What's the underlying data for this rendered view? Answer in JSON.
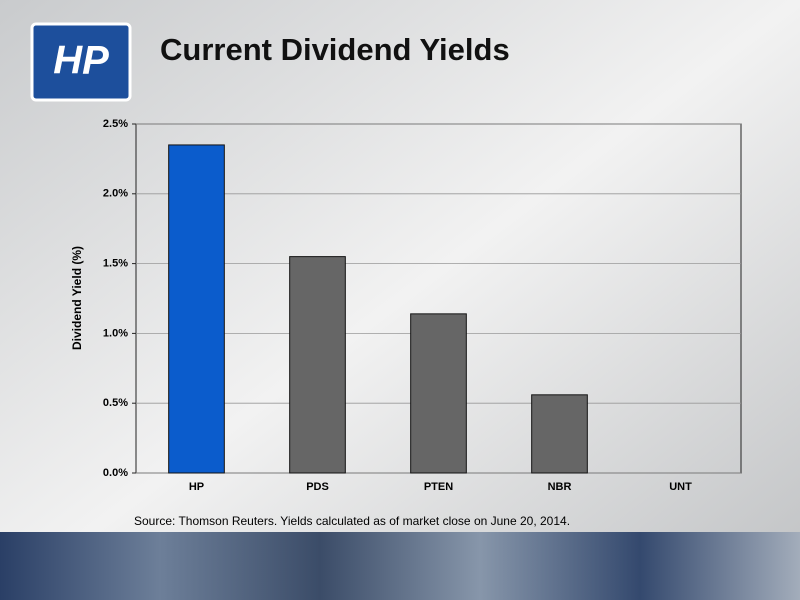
{
  "logo_text": "HP",
  "chart_data": {
    "type": "bar",
    "title": "Current Dividend Yields",
    "y_label": "Dividend Yield (%)",
    "note": "Source: Thomson Reuters.  Yields calculated as of market close on June 20, 2014.",
    "categories": [
      "HP",
      "PDS",
      "PTEN",
      "NBR",
      "UNT"
    ],
    "values": [
      2.35,
      1.55,
      1.14,
      0.56,
      0
    ],
    "colors": [
      "#0b5ccc",
      "#666666",
      "#666666",
      "#666666",
      "#666666"
    ],
    "ylim": [
      0,
      2.5
    ],
    "yticks": [
      {
        "value": 0,
        "label": "0.0%"
      },
      {
        "value": 0.5,
        "label": "0.5%"
      },
      {
        "value": 1,
        "label": "1.0%"
      },
      {
        "value": 1.5,
        "label": "1.5%"
      },
      {
        "value": 2,
        "label": "2.0%"
      },
      {
        "value": 2.5,
        "label": "2.5%"
      }
    ],
    "grid": true
  }
}
